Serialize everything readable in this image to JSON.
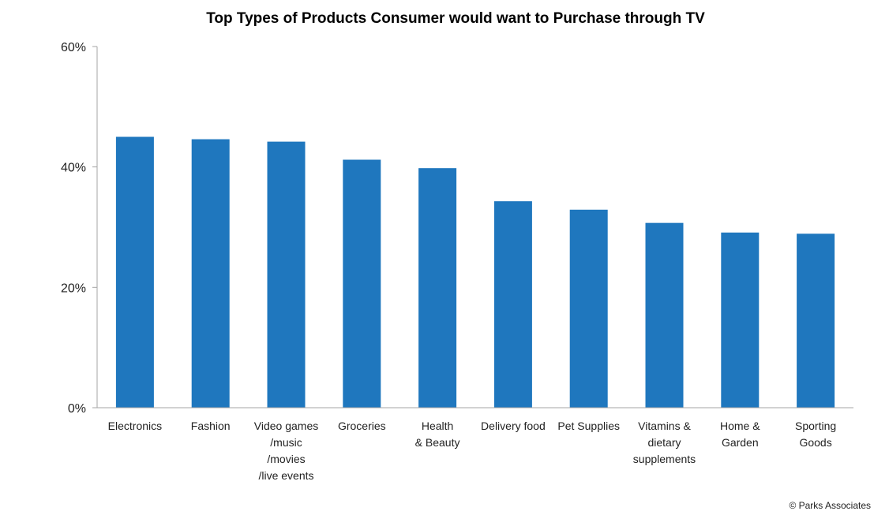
{
  "chart_data": {
    "type": "bar",
    "title": "Top Types of Products Consumer would want to Purchase through TV",
    "xlabel": "",
    "ylabel": "",
    "categories": [
      "Electronics",
      "Fashion",
      "Video games /music /movies /live events",
      "Groceries",
      "Health & Beauty",
      "Delivery food",
      "Pet Supplies",
      "Vitamins & dietary supplements",
      "Home & Garden",
      "Sporting Goods"
    ],
    "category_label_lines": [
      [
        "Electronics"
      ],
      [
        "Fashion"
      ],
      [
        "Video games",
        "/music",
        "/movies",
        "/live events"
      ],
      [
        "Groceries"
      ],
      [
        "Health",
        "& Beauty"
      ],
      [
        "Delivery food"
      ],
      [
        "Pet Supplies"
      ],
      [
        "Vitamins &",
        "dietary",
        "supplements"
      ],
      [
        "Home &",
        "Garden"
      ],
      [
        "Sporting",
        "Goods"
      ]
    ],
    "values": [
      45,
      44.6,
      44.2,
      41.2,
      39.8,
      34.3,
      32.9,
      30.7,
      29.1,
      28.9
    ],
    "value_format": "percent",
    "ylim": [
      0,
      60
    ],
    "yticks": [
      0,
      20,
      40,
      60
    ],
    "ytick_labels": [
      "0%",
      "20%",
      "40%",
      "60%"
    ],
    "grid": false,
    "legend": "none",
    "bar_color": "#1F77BE",
    "axis_color": "#A6A6A6"
  },
  "credit": "© Parks Associates"
}
